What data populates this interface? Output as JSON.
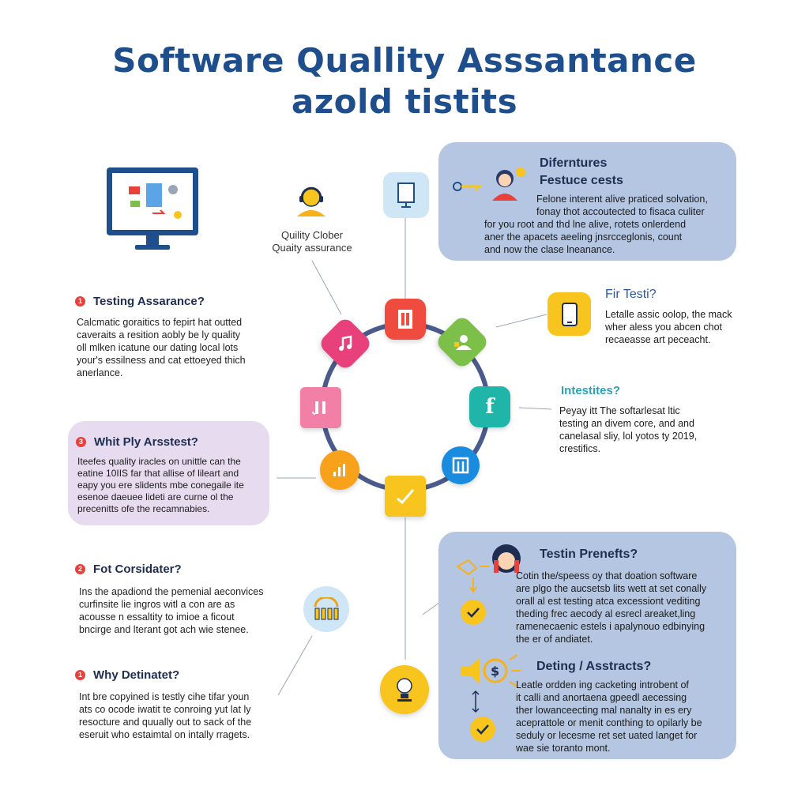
{
  "title": {
    "line1": "Software Quallity Asssantance",
    "line2": "azold tistits"
  },
  "top_center": {
    "label1": "Quility Clober",
    "label2": "Quaity assurance"
  },
  "panel_features": {
    "title1": "Diferntures",
    "title2": "Festuce cests",
    "lines": [
      "Felone interent alive praticed solvation,",
      "fonay thot accoutected to fisaca culiter",
      "for you root and thd lne alive, rotets onlerdend",
      "aner the apacets aeeling jnsrcceglonis, count",
      "and now the clase lneanance."
    ]
  },
  "fir_testi": {
    "title": "Fir Testi?",
    "lines": [
      "Letalle assic oolop, the mack",
      "wher aless you abcen chot",
      "recaeasse art peceacht."
    ]
  },
  "intestites": {
    "title": "Intestites?",
    "lines": [
      "Peyay itt The softarlesat ltic",
      "testing an divem core, and and",
      "canelasal sliy, lol yotos ty 2019,",
      "crestifics."
    ]
  },
  "testing_assarance": {
    "number": "1",
    "title": "Testing Assarance?",
    "lines": [
      "Calcmatic goraitics to fepirt hat outted",
      "caveraits a resition aobly be ly quality",
      "oll mlken icatune our dating local lots",
      "your's essilness and cat ettoeyed thich",
      "anerlance."
    ]
  },
  "panel_why": {
    "number": "3",
    "title": "Whit Ply Arsstest?",
    "lines": [
      "Iteefes quality iracles on unittle can the",
      "eatine 10IIS far that allise of lileart and",
      "eapy you ere slidents mbe conegaile ite",
      "esenoe daeuee lideti are curne ol the",
      "precenitts ofe the recamnabies."
    ]
  },
  "fot_corsidater": {
    "number": "2",
    "title": "Fot Corsidater?",
    "lines": [
      "Ins the apadiond the pemenial aeconvices",
      "curfinsite lie ingros witl a con are as",
      "acousse n essaltity to imioe a ficout",
      "bncirge and lterant got ach wie stenee."
    ]
  },
  "why_detinatet": {
    "number": "1",
    "title": "Why Detinatet?",
    "lines": [
      "Int bre copyined is testly cihe tifar youn",
      "ats co ocode iwatit te conroing yut lat ly",
      "resocture and quually out to sack of the",
      "eseruit who estaimtal on intally rragets."
    ]
  },
  "panel_benefits": {
    "title": "Testin Prenefts?",
    "lines": [
      "Cotin the/speess oy that doation software",
      "are plgo the aucsetsb lits wett at set conally",
      "orall al est testing atca excessiont vediting",
      "theding frec aecody al esrecl areaket,ling",
      "ramenecaenic estels i apalynouo edbinying",
      "the er of andiatet."
    ],
    "title2": "Deting / Asstracts?",
    "lines2": [
      "Leatle ordden ing cacketing introbent of",
      "it calli and anortaena gpeedl aecessing",
      "ther lowanceecting mal nanalty in es ery",
      "aceprattole or menit conthing to opilarly be",
      "seduly or lecesme ret set uated langet for",
      "wae sie toranto mont."
    ]
  },
  "icons": {
    "monitor": "monitor-icon",
    "person_headset": "person-headset-icon",
    "document_small": "document-icon",
    "ring": [
      "document-tile-icon",
      "user-tile-icon",
      "facebook-tile-icon",
      "window-tile-icon",
      "check-tile-icon",
      "chart-tile-icon",
      "bars-tile-icon",
      "music-tile-icon"
    ],
    "dollar": "dollar-sign-icon",
    "check": "check-circle-icon",
    "fence": "fence-icon",
    "bulb": "bulb-icon"
  },
  "colors": {
    "title": "#1f4e8c",
    "ring": "#4b5a8c",
    "panel_blue": "#b4c6e2",
    "panel_purple": "#e7dcef",
    "red": "#e8413c",
    "green": "#7cc04a",
    "teal": "#1fb5a8",
    "blue": "#1a8ce0",
    "yellow": "#f7c51e",
    "orange": "#f7a21a",
    "pink": "#f17fa6",
    "magenta": "#e8407a"
  }
}
